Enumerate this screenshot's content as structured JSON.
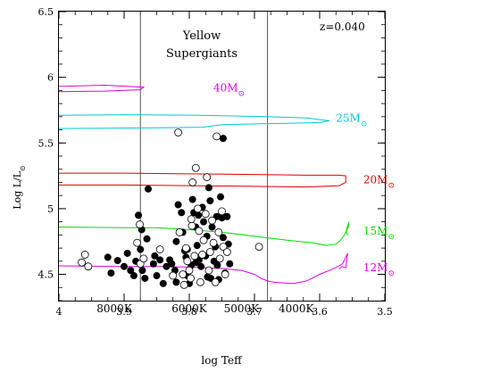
{
  "chart_data": {
    "type": "scatter",
    "title": "",
    "xlabel": "log Teff",
    "ylabel": "Log L/L",
    "ylabel_symbol": "⊙",
    "xlim": [
      4.0,
      3.5
    ],
    "ylim": [
      4.3,
      6.5
    ],
    "x_inverted": true,
    "x_ticks": [
      {
        "value": 4.0,
        "label": "4"
      },
      {
        "value": 3.9,
        "label": "3.9"
      },
      {
        "value": 3.8,
        "label": "3.8"
      },
      {
        "value": 3.7,
        "label": "3.7"
      },
      {
        "value": 3.6,
        "label": "3.6"
      },
      {
        "value": 3.5,
        "label": "3.5"
      }
    ],
    "y_ticks": [
      {
        "value": 4.5,
        "label": "4.5"
      },
      {
        "value": 5.0,
        "label": "5"
      },
      {
        "value": 5.5,
        "label": "5.5"
      },
      {
        "value": 6.0,
        "label": "6"
      },
      {
        "value": 6.5,
        "label": "6.5"
      }
    ],
    "grid": false,
    "boundary_lines": [
      3.875,
      3.68
    ],
    "region_label_line1": "Yellow",
    "region_label_line2": "Supergiants",
    "metallicity_label": "z=0.040",
    "temperature_labels": [
      {
        "text": "8000K",
        "x": 3.915
      },
      {
        "text": "6000K",
        "x": 3.8
      },
      {
        "text": "5000K",
        "x": 3.72
      },
      {
        "text": "4000K",
        "x": 3.636
      }
    ],
    "tracks": [
      {
        "name": "40M",
        "color": "#e000e0",
        "label_x": 3.763,
        "label_y": 5.92,
        "points": [
          [
            4.0,
            5.93
          ],
          [
            3.93,
            5.94
          ],
          [
            3.87,
            5.925
          ],
          [
            3.875,
            5.905
          ],
          [
            3.93,
            5.895
          ],
          [
            4.0,
            5.89
          ]
        ]
      },
      {
        "name": "25M",
        "color": "#00c8d8",
        "label_x": 3.575,
        "label_y": 5.69,
        "points": [
          [
            4.0,
            5.71
          ],
          [
            3.9,
            5.715
          ],
          [
            3.78,
            5.71
          ],
          [
            3.68,
            5.7
          ],
          [
            3.62,
            5.69
          ],
          [
            3.595,
            5.675
          ],
          [
            3.585,
            5.67
          ],
          [
            3.6,
            5.655
          ],
          [
            3.65,
            5.65
          ],
          [
            3.7,
            5.645
          ],
          [
            3.75,
            5.64
          ],
          [
            3.78,
            5.62
          ],
          [
            3.85,
            5.615
          ],
          [
            4.0,
            5.61
          ]
        ]
      },
      {
        "name": "20M",
        "color": "#e00000",
        "label_x": 3.533,
        "label_y": 5.22,
        "points": [
          [
            4.0,
            5.27
          ],
          [
            3.9,
            5.27
          ],
          [
            3.8,
            5.265
          ],
          [
            3.7,
            5.26
          ],
          [
            3.62,
            5.255
          ],
          [
            3.57,
            5.255
          ],
          [
            3.56,
            5.25
          ],
          [
            3.56,
            5.2
          ],
          [
            3.57,
            5.175
          ],
          [
            3.62,
            5.165
          ],
          [
            3.7,
            5.17
          ],
          [
            3.8,
            5.175
          ],
          [
            3.9,
            5.18
          ],
          [
            4.0,
            5.18
          ]
        ]
      },
      {
        "name": "15M",
        "color": "#00dd00",
        "label_x": 3.533,
        "label_y": 4.83,
        "points": [
          [
            4.0,
            4.86
          ],
          [
            3.9,
            4.855
          ],
          [
            3.85,
            4.855
          ],
          [
            3.8,
            4.84
          ],
          [
            3.75,
            4.82
          ],
          [
            3.7,
            4.79
          ],
          [
            3.65,
            4.76
          ],
          [
            3.61,
            4.74
          ],
          [
            3.59,
            4.72
          ],
          [
            3.575,
            4.73
          ],
          [
            3.568,
            4.76
          ],
          [
            3.562,
            4.8
          ],
          [
            3.556,
            4.86
          ],
          [
            3.555,
            4.9
          ],
          [
            3.56,
            4.82
          ],
          [
            3.556,
            4.8
          ]
        ]
      },
      {
        "name": "12M",
        "color": "#e000e0",
        "label_x": 3.533,
        "label_y": 4.55,
        "points": [
          [
            4.0,
            4.565
          ],
          [
            3.9,
            4.56
          ],
          [
            3.85,
            4.56
          ],
          [
            3.8,
            4.555
          ],
          [
            3.75,
            4.545
          ],
          [
            3.72,
            4.53
          ],
          [
            3.7,
            4.5
          ],
          [
            3.69,
            4.47
          ],
          [
            3.68,
            4.45
          ],
          [
            3.67,
            4.44
          ],
          [
            3.64,
            4.43
          ],
          [
            3.62,
            4.45
          ],
          [
            3.6,
            4.5
          ],
          [
            3.58,
            4.54
          ],
          [
            3.565,
            4.58
          ],
          [
            3.557,
            4.66
          ],
          [
            3.56,
            4.55
          ],
          [
            3.566,
            4.56
          ],
          [
            3.57,
            4.54
          ]
        ]
      }
    ],
    "series": [
      {
        "marker": "filled",
        "points": [
          [
            3.748,
            5.535
          ],
          [
            3.925,
            4.63
          ],
          [
            3.92,
            4.51
          ],
          [
            3.91,
            4.605
          ],
          [
            3.9,
            4.56
          ],
          [
            3.895,
            4.66
          ],
          [
            3.89,
            4.53
          ],
          [
            3.885,
            4.49
          ],
          [
            3.882,
            4.6
          ],
          [
            3.878,
            4.95
          ],
          [
            3.875,
            4.69
          ],
          [
            3.872,
            4.53
          ],
          [
            3.868,
            4.47
          ],
          [
            3.865,
            4.77
          ],
          [
            3.863,
            5.15
          ],
          [
            3.855,
            4.58
          ],
          [
            3.85,
            4.49
          ],
          [
            3.845,
            4.61
          ],
          [
            3.84,
            4.43
          ],
          [
            3.83,
            4.61
          ],
          [
            3.827,
            4.58
          ],
          [
            3.822,
            4.53
          ],
          [
            3.82,
            4.75
          ],
          [
            3.817,
            5.03
          ],
          [
            3.812,
            4.97
          ],
          [
            3.81,
            4.82
          ],
          [
            3.807,
            4.68
          ],
          [
            3.805,
            4.63
          ],
          [
            3.803,
            4.49
          ],
          [
            3.8,
            4.43
          ],
          [
            3.797,
            4.57
          ],
          [
            3.795,
            5.07
          ],
          [
            3.793,
            4.97
          ],
          [
            3.79,
            4.86
          ],
          [
            3.788,
            4.72
          ],
          [
            3.785,
            4.61
          ],
          [
            3.782,
            4.56
          ],
          [
            3.78,
            5.01
          ],
          [
            3.778,
            4.9
          ],
          [
            3.775,
            4.64
          ],
          [
            3.772,
            4.48
          ],
          [
            3.77,
            5.16
          ],
          [
            3.768,
            5.06
          ],
          [
            3.765,
            4.86
          ],
          [
            3.762,
            4.6
          ],
          [
            3.76,
            4.71
          ],
          [
            3.757,
            4.57
          ],
          [
            3.755,
            4.46
          ],
          [
            3.752,
            5.09
          ],
          [
            3.75,
            4.93
          ],
          [
            3.748,
            4.78
          ],
          [
            3.745,
            4.51
          ],
          [
            3.742,
            4.94
          ],
          [
            3.74,
            4.73
          ],
          [
            3.738,
            4.58
          ],
          [
            3.82,
            4.44
          ],
          [
            3.835,
            4.56
          ],
          [
            3.79,
            4.59
          ],
          [
            3.773,
            4.79
          ],
          [
            3.767,
            4.47
          ],
          [
            3.758,
            4.94
          ],
          [
            3.853,
            4.64
          ],
          [
            3.873,
            4.84
          ],
          [
            3.803,
            4.69
          ],
          [
            3.786,
            4.95
          ]
        ]
      },
      {
        "marker": "open",
        "points": [
          [
            3.965,
            4.59
          ],
          [
            3.96,
            4.65
          ],
          [
            3.955,
            4.56
          ],
          [
            3.88,
            4.74
          ],
          [
            3.876,
            4.88
          ],
          [
            3.875,
            4.58
          ],
          [
            3.87,
            4.62
          ],
          [
            3.845,
            4.69
          ],
          [
            3.817,
            5.58
          ],
          [
            3.81,
            4.5
          ],
          [
            3.808,
            4.42
          ],
          [
            3.805,
            4.7
          ],
          [
            3.803,
            4.6
          ],
          [
            3.8,
            4.53
          ],
          [
            3.798,
            4.47
          ],
          [
            3.796,
            4.87
          ],
          [
            3.795,
            5.2
          ],
          [
            3.792,
            4.64
          ],
          [
            3.79,
            5.31
          ],
          [
            3.787,
            5.0
          ],
          [
            3.785,
            4.83
          ],
          [
            3.783,
            4.44
          ],
          [
            3.78,
            4.65
          ],
          [
            3.778,
            4.76
          ],
          [
            3.775,
            4.96
          ],
          [
            3.773,
            5.24
          ],
          [
            3.77,
            4.53
          ],
          [
            3.768,
            4.67
          ],
          [
            3.765,
            4.91
          ],
          [
            3.763,
            4.74
          ],
          [
            3.76,
            4.44
          ],
          [
            3.758,
            5.55
          ],
          [
            3.755,
            4.82
          ],
          [
            3.753,
            4.62
          ],
          [
            3.75,
            4.98
          ],
          [
            3.748,
            4.71
          ],
          [
            3.745,
            4.5
          ],
          [
            3.742,
            4.67
          ],
          [
            3.693,
            4.71
          ],
          [
            3.825,
            4.49
          ],
          [
            3.815,
            4.82
          ],
          [
            3.797,
            4.92
          ]
        ]
      }
    ]
  }
}
